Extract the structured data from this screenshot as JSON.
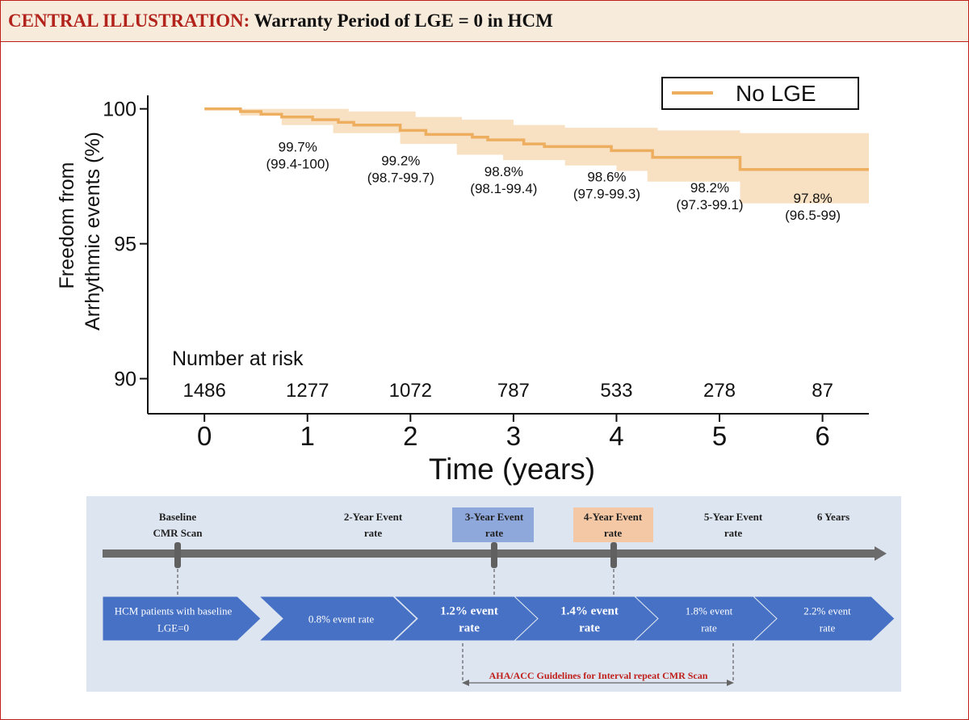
{
  "header": {
    "label": "CENTRAL ILLUSTRATION:",
    "title": "Warranty Period of LGE = 0 in HCM"
  },
  "colors": {
    "curve": "#eeae60",
    "ci_band": "#f8e0c2",
    "header_bg": "#f7ebdc",
    "header_label": "#b2231c",
    "timeline_panel": "#dde5f0",
    "chevron": "#4771c5",
    "highlight_3yr": "#8fa8dc",
    "highlight_4yr": "#f5c8a5",
    "guideline_text": "#c0201b",
    "timeline_bar": "#6b6b6b"
  },
  "chart_data": {
    "type": "line",
    "ylabel_line1": "Freedom from",
    "ylabel_line2": "Arrhythmic events (%)",
    "xlabel": "Time (years)",
    "xlim": [
      -0.55,
      6.45
    ],
    "ylim": [
      88.7,
      100.5
    ],
    "xticks": [
      "0",
      "1",
      "2",
      "3",
      "4",
      "5",
      "6"
    ],
    "yticks": [
      "90",
      "95",
      "100"
    ],
    "ytick_values": [
      90,
      95,
      100
    ],
    "legend": {
      "label": "No LGE",
      "position": "top-right"
    },
    "series": [
      {
        "name": "No LGE",
        "steps": [
          [
            0,
            100
          ],
          [
            0.35,
            99.9
          ],
          [
            0.55,
            99.8
          ],
          [
            0.75,
            99.7
          ],
          [
            1.05,
            99.6
          ],
          [
            1.3,
            99.5
          ],
          [
            1.45,
            99.4
          ],
          [
            1.9,
            99.2
          ],
          [
            2.15,
            99.05
          ],
          [
            2.6,
            98.95
          ],
          [
            2.75,
            98.85
          ],
          [
            3.1,
            98.7
          ],
          [
            3.3,
            98.6
          ],
          [
            3.95,
            98.45
          ],
          [
            4.35,
            98.2
          ],
          [
            5.2,
            97.75
          ],
          [
            6.45,
            97.75
          ]
        ],
        "ci_upper": [
          [
            0,
            100
          ],
          [
            0.5,
            100
          ],
          [
            1,
            100
          ],
          [
            1.4,
            99.9
          ],
          [
            2.05,
            99.7
          ],
          [
            2.5,
            99.6
          ],
          [
            3.0,
            99.4
          ],
          [
            3.5,
            99.3
          ],
          [
            4.0,
            99.3
          ],
          [
            4.4,
            99.2
          ],
          [
            5.2,
            99.1
          ],
          [
            6.45,
            99.05
          ]
        ],
        "ci_lower": [
          [
            0,
            100
          ],
          [
            0.35,
            99.75
          ],
          [
            0.75,
            99.4
          ],
          [
            1.25,
            99.1
          ],
          [
            1.9,
            98.7
          ],
          [
            2.45,
            98.3
          ],
          [
            2.9,
            98.1
          ],
          [
            3.5,
            97.9
          ],
          [
            4.0,
            97.7
          ],
          [
            4.3,
            97.3
          ],
          [
            5.2,
            96.5
          ],
          [
            6.45,
            96.5
          ]
        ]
      }
    ],
    "annotations": [
      {
        "x": 1,
        "y": 99.7,
        "pct": "99.7%",
        "ci": "(99.4-100)"
      },
      {
        "x": 2,
        "y": 99.2,
        "pct": "99.2%",
        "ci": "(98.7-99.7)"
      },
      {
        "x": 3,
        "y": 98.8,
        "pct": "98.8%",
        "ci": "(98.1-99.4)"
      },
      {
        "x": 4,
        "y": 98.6,
        "pct": "98.6%",
        "ci": "(97.9-99.3)"
      },
      {
        "x": 5,
        "y": 98.2,
        "pct": "98.2%",
        "ci": "(97.3-99.1)"
      },
      {
        "x": 6,
        "y": 97.8,
        "pct": "97.8%",
        "ci": "(96.5-99)"
      }
    ],
    "risk_table": {
      "title": "Number at risk",
      "values": [
        "1486",
        "1277",
        "1072",
        "787",
        "533",
        "278",
        "87"
      ]
    }
  },
  "timeline": {
    "milestones": [
      {
        "line1": "Baseline",
        "line2": "CMR Scan"
      },
      {
        "line1": "2-Year Event",
        "line2": "rate"
      },
      {
        "line1": "3-Year Event",
        "line2": "rate"
      },
      {
        "line1": "4-Year Event",
        "line2": "rate"
      },
      {
        "line1": "5-Year Event",
        "line2": "rate"
      },
      {
        "line1": "6 Years",
        "line2": ""
      }
    ],
    "chevrons": [
      {
        "line1": "HCM patients with baseline",
        "line2": "LGE=0"
      },
      {
        "line1": "0.8% event rate",
        "line2": ""
      },
      {
        "line1": "1.2% event",
        "line2": "rate"
      },
      {
        "line1": "1.4% event",
        "line2": "rate"
      },
      {
        "line1": "1.8% event",
        "line2": "rate"
      },
      {
        "line1": "2.2% event",
        "line2": "rate"
      }
    ],
    "guideline": "AHA/ACC Guidelines for Interval repeat CMR Scan"
  }
}
